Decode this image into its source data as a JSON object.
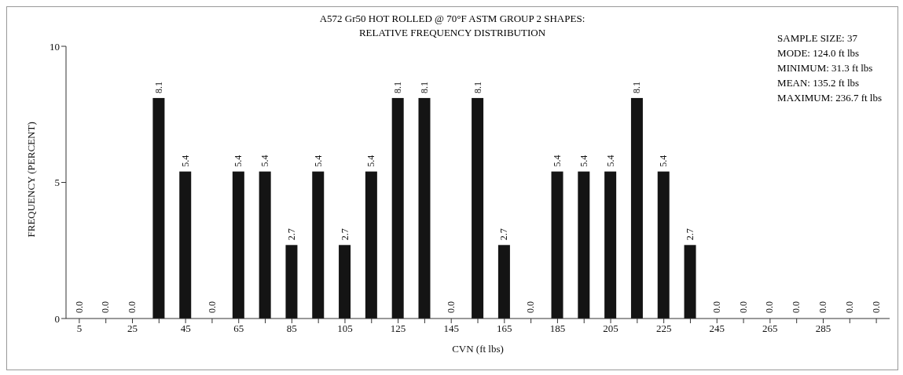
{
  "chart_data": {
    "type": "bar",
    "title": "A572 Gr50 HOT ROLLED @ 70°F ASTM GROUP 2 SHAPES:",
    "subtitle": "RELATIVE FREQUENCY DISTRIBUTION",
    "xlabel": "CVN (ft lbs)",
    "ylabel": "FREQUENCY (PERCENT)",
    "categories": [
      "5",
      null,
      "25",
      null,
      "45",
      null,
      "65",
      null,
      "85",
      null,
      "105",
      null,
      "125",
      null,
      "145",
      null,
      "165",
      null,
      "185",
      null,
      "205",
      null,
      "225",
      null,
      "245",
      null,
      "265",
      null,
      "285",
      null,
      null
    ],
    "values": [
      0.0,
      0.0,
      0.0,
      8.1,
      5.4,
      0.0,
      5.4,
      5.4,
      2.7,
      5.4,
      2.7,
      5.4,
      8.1,
      8.1,
      0.0,
      8.1,
      2.7,
      0.0,
      5.4,
      5.4,
      5.4,
      8.1,
      5.4,
      2.7,
      0.0,
      0.0,
      0.0,
      0.0,
      0.0,
      0.0,
      0.0
    ],
    "color": "#141414",
    "ylim": [
      0,
      10
    ],
    "yticks": [
      0,
      5,
      10
    ],
    "value_labels": [
      "0.0",
      "0.0",
      "0.0",
      "8.1",
      "5.4",
      "0.0",
      "5.4",
      "5.4",
      "2.7",
      "5.4",
      "2.7",
      "5.4",
      "8.1",
      "8.1",
      "0.0",
      "8.1",
      "2.7",
      "0.0",
      "5.4",
      "5.4",
      "5.4",
      "8.1",
      "5.4",
      "2.7",
      "0.0",
      "0.0",
      "0.0",
      "0.0",
      "0.0",
      "0.0",
      "0.0"
    ],
    "grid": false,
    "annotations": [
      "SAMPLE SIZE: 37",
      "MODE: 124.0 ft lbs",
      "MINIMUM: 31.3 ft lbs",
      "MEAN: 135.2 ft lbs",
      "MAXIMUM: 236.7 ft lbs"
    ]
  }
}
